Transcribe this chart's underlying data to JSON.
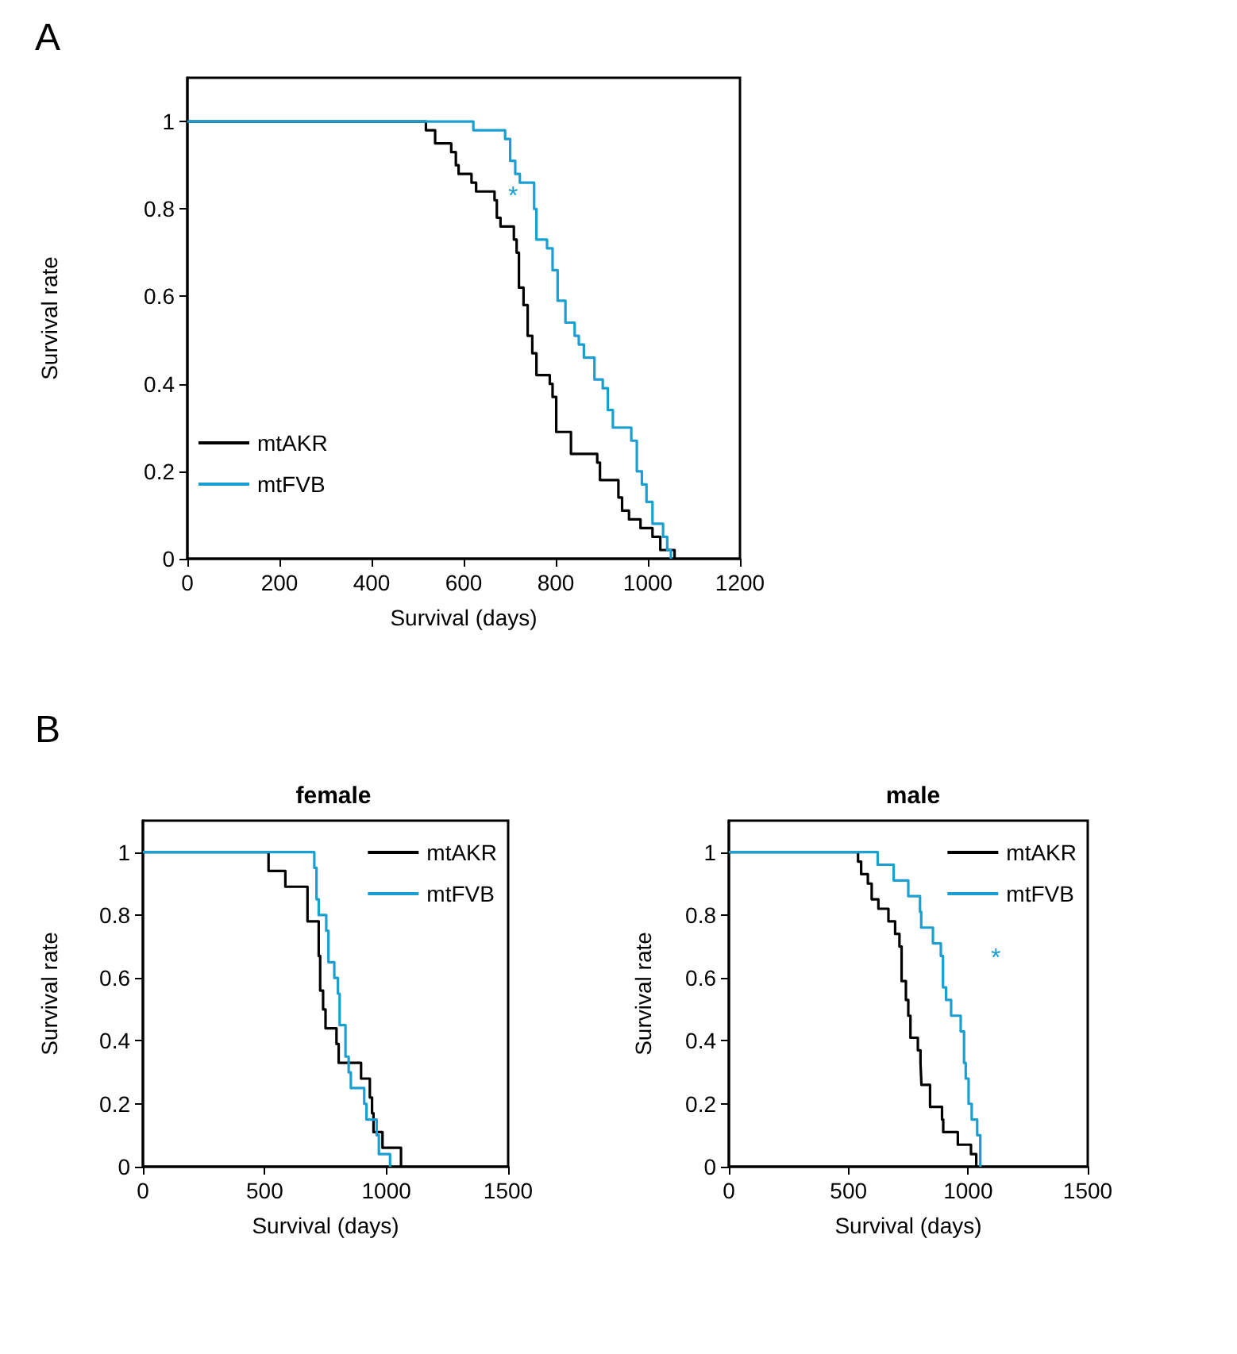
{
  "chart_data": [
    {
      "type": "step",
      "xlabel": "Survival (days)",
      "ylabel": "Survival rate",
      "xlim": [
        0,
        1200
      ],
      "xticks": [
        0,
        200,
        400,
        600,
        800,
        1000,
        1200
      ],
      "ylim": [
        0,
        1.1
      ],
      "yticks": [
        0,
        0.2,
        0.4,
        0.6,
        0.8,
        1
      ],
      "grid": false,
      "legend": "bottom left",
      "marker": "none",
      "annotations": [
        "A",
        "*"
      ],
      "series": [
        {
          "name": "mtAKR",
          "color": "#000000",
          "x": [
            0,
            518,
            538,
            573,
            583,
            589,
            617,
            627,
            667,
            672,
            680,
            709,
            715,
            720,
            730,
            739,
            749,
            758,
            787,
            793,
            801,
            833,
            890,
            896,
            936,
            944,
            959,
            984,
            1010,
            1027,
            1058
          ],
          "values": [
            1,
            0.98,
            0.95,
            0.93,
            0.9,
            0.88,
            0.86,
            0.84,
            0.82,
            0.78,
            0.76,
            0.73,
            0.7,
            0.62,
            0.58,
            0.51,
            0.47,
            0.42,
            0.4,
            0.37,
            0.29,
            0.24,
            0.22,
            0.18,
            0.14,
            0.11,
            0.09,
            0.07,
            0.05,
            0.02,
            0
          ]
        },
        {
          "name": "mtFVB",
          "color": "#1b9fd0",
          "x": [
            0,
            621,
            690,
            701,
            712,
            722,
            753,
            758,
            781,
            793,
            804,
            821,
            841,
            850,
            861,
            884,
            902,
            913,
            924,
            964,
            976,
            987,
            997,
            1010,
            1033,
            1042,
            1050
          ],
          "values": [
            1,
            0.98,
            0.96,
            0.91,
            0.88,
            0.86,
            0.8,
            0.73,
            0.71,
            0.66,
            0.59,
            0.54,
            0.51,
            0.49,
            0.46,
            0.41,
            0.39,
            0.34,
            0.3,
            0.27,
            0.2,
            0.17,
            0.13,
            0.08,
            0.05,
            0.02,
            0
          ]
        }
      ]
    },
    {
      "type": "step",
      "title": "female",
      "xlabel": "Survival (days)",
      "ylabel": "Survival rate",
      "xlim": [
        0,
        1500
      ],
      "xticks": [
        0,
        500,
        1000,
        1500
      ],
      "ylim": [
        0,
        1.1
      ],
      "yticks": [
        0,
        0.2,
        0.4,
        0.6,
        0.8,
        1
      ],
      "grid": false,
      "legend": "top right",
      "marker": "none",
      "annotations": [
        "B"
      ],
      "series": [
        {
          "name": "mtAKR",
          "color": "#000000",
          "x": [
            0,
            516,
            585,
            676,
            722,
            728,
            740,
            750,
            795,
            804,
            896,
            932,
            941,
            947,
            984,
            1060
          ],
          "values": [
            1,
            0.94,
            0.89,
            0.78,
            0.67,
            0.56,
            0.5,
            0.44,
            0.39,
            0.33,
            0.28,
            0.22,
            0.17,
            0.11,
            0.06,
            0
          ]
        },
        {
          "name": "mtFVB",
          "color": "#1b9fd0",
          "x": [
            0,
            704,
            713,
            722,
            753,
            762,
            786,
            801,
            808,
            832,
            845,
            854,
            909,
            918,
            960,
            969,
            1015
          ],
          "values": [
            1,
            0.95,
            0.85,
            0.8,
            0.75,
            0.65,
            0.6,
            0.55,
            0.45,
            0.35,
            0.3,
            0.25,
            0.2,
            0.15,
            0.1,
            0.04,
            0
          ]
        }
      ]
    },
    {
      "type": "step",
      "title": "male",
      "xlabel": "Survival (days)",
      "ylabel": "Survival rate",
      "xlim": [
        0,
        1500
      ],
      "xticks": [
        0,
        500,
        1000,
        1500
      ],
      "ylim": [
        0,
        1.1
      ],
      "yticks": [
        0,
        0.2,
        0.4,
        0.6,
        0.8,
        1
      ],
      "grid": false,
      "legend": "top right",
      "marker": "none",
      "annotations": [
        "*"
      ],
      "series": [
        {
          "name": "mtAKR",
          "color": "#000000",
          "x": [
            0,
            540,
            553,
            581,
            597,
            625,
            667,
            695,
            713,
            722,
            740,
            750,
            759,
            790,
            801,
            805,
            841,
            891,
            896,
            957,
            1012,
            1034
          ],
          "values": [
            1,
            0.97,
            0.93,
            0.9,
            0.85,
            0.82,
            0.78,
            0.74,
            0.7,
            0.59,
            0.53,
            0.48,
            0.41,
            0.37,
            0.33,
            0.26,
            0.19,
            0.15,
            0.11,
            0.07,
            0.04,
            0
          ]
        },
        {
          "name": "mtFVB",
          "color": "#1b9fd0",
          "x": [
            0,
            622,
            689,
            750,
            799,
            804,
            853,
            886,
            895,
            908,
            929,
            969,
            983,
            990,
            1002,
            1015,
            1038,
            1051
          ],
          "values": [
            1,
            0.96,
            0.91,
            0.86,
            0.81,
            0.76,
            0.71,
            0.67,
            0.57,
            0.53,
            0.48,
            0.43,
            0.33,
            0.28,
            0.2,
            0.15,
            0.1,
            0
          ]
        }
      ]
    }
  ]
}
